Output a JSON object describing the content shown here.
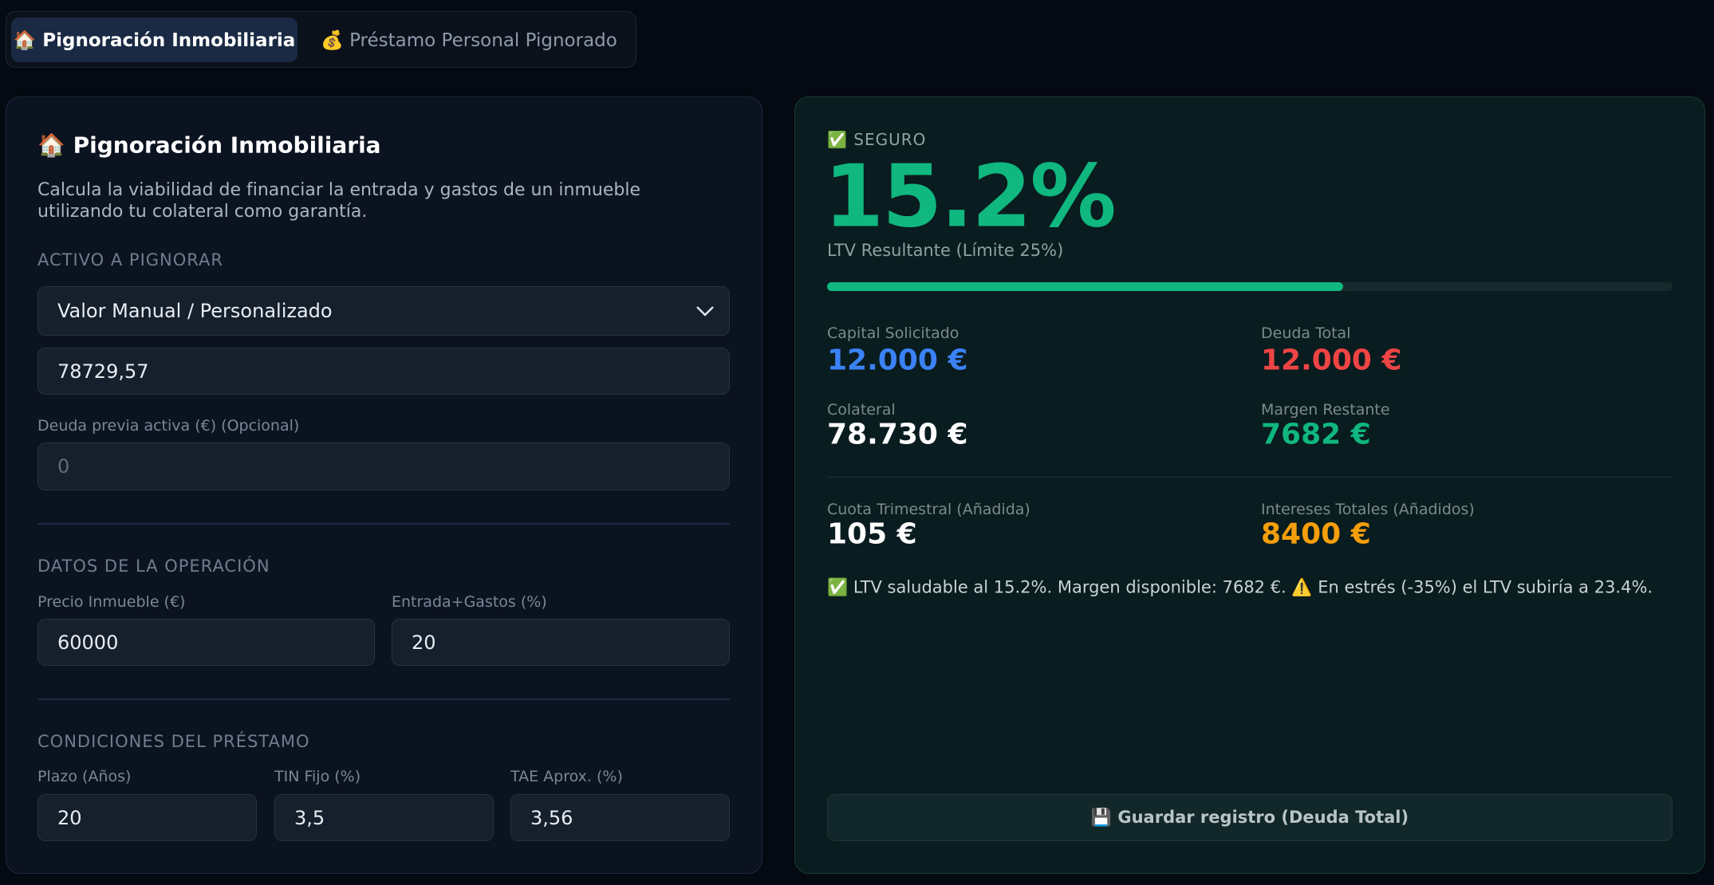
{
  "tabs": [
    "🏠 Pignoración Inmobiliaria",
    "💰 Préstamo Personal Pignorado"
  ],
  "form": {
    "title": "🏠 Pignoración Inmobiliaria",
    "description": "Calcula la viabilidad de financiar la entrada y gastos de un inmueble utilizando tu colateral como garantía.",
    "asset_section": "ACTIVO A PIGNORAR",
    "asset_select": "Valor Manual / Personalizado",
    "asset_value": "78729,57",
    "prior_debt_label": "Deuda previa activa (€) (Opcional)",
    "prior_debt_placeholder": "0",
    "operation_section": "DATOS DE LA OPERACIÓN",
    "price_label": "Precio Inmueble (€)",
    "down_label": "Entrada+Gastos (%)",
    "price": "60000",
    "down": "20",
    "loan_section": "CONDICIONES DEL PRÉSTAMO",
    "term_label": "Plazo (Años)",
    "tin_label": "TIN Fijo (%)",
    "tae_label": "TAE Aprox. (%)",
    "term": "20",
    "tin": "3,5",
    "tae": "3,56"
  },
  "result": {
    "status": "✅ SEGURO",
    "ltv": "15.2%",
    "ltv_caption": "LTV Resultante (Límite 25%)",
    "metrics": [
      {
        "label": "Capital Solicitado",
        "value": "12.000 €"
      },
      {
        "label": "Deuda Total",
        "value": "12.000 €"
      },
      {
        "label": "Colateral",
        "value": "78.730 €"
      },
      {
        "label": "Margen Restante",
        "value": "7682 €"
      },
      {
        "label": "Cuota Trimestral (Añadida)",
        "value": "105 €"
      },
      {
        "label": "Intereses Totales (Añadidos)",
        "value": "8400 €"
      }
    ],
    "message": "✅ LTV saludable al 15.2%. Margen disponible: 7682 €. ⚠️ En estrés (-35%) el LTV subiría a 23.4%.",
    "save_button": "💾 Guardar registro (Deuda Total)"
  }
}
